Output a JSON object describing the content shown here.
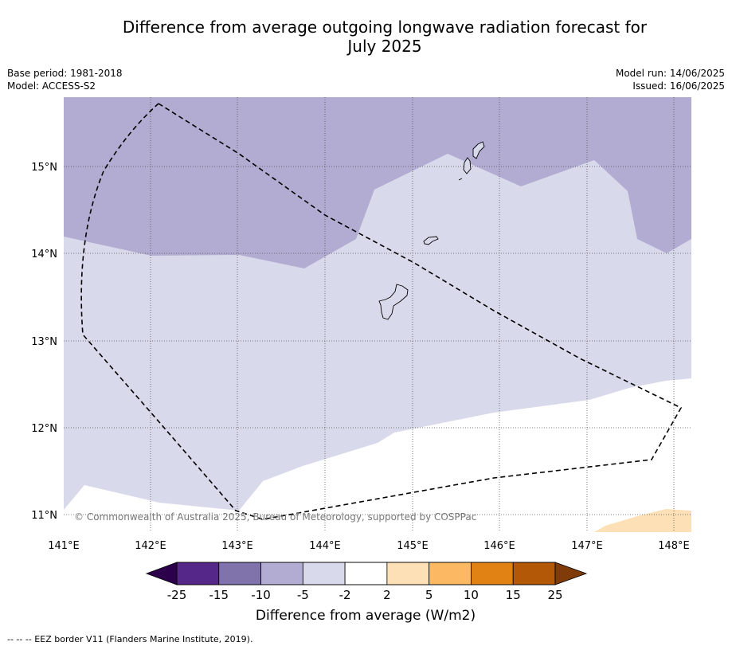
{
  "title_line1": "Difference from average outgoing longwave radiation forecast for",
  "title_line2": "July 2025",
  "meta_left": {
    "base_period": "Base period: 1981-2018",
    "model": "Model: ACCESS-S2"
  },
  "meta_right": {
    "model_run": "Model run: 14/06/2025",
    "issued": "Issued: 16/06/2025"
  },
  "map": {
    "lon_ticks": [
      "141°E",
      "142°E",
      "143°E",
      "144°E",
      "145°E",
      "146°E",
      "147°E",
      "148°E"
    ],
    "lat_ticks": [
      "15°N",
      "14°N",
      "13°N",
      "12°N",
      "11°N"
    ],
    "copyright": "© Commonwealth of Australia 2025, Bureau of Meteorology, supported by COSPPac"
  },
  "colorbar": {
    "label": "Difference from average (W/m2)",
    "ticks": [
      "-25",
      "-15",
      "-10",
      "-5",
      "-2",
      "2",
      "5",
      "10",
      "15",
      "25"
    ],
    "colors": {
      "below_min": "#2d004b",
      "bins": [
        "#542788",
        "#8073ac",
        "#b2abd2",
        "#d8daeb",
        "#ffffff",
        "#fee0b6",
        "#fdb863",
        "#e08214",
        "#b35806"
      ],
      "above_max": "#7f3b08"
    }
  },
  "footnote": "--  --  -- EEZ border V11 (Flanders Marine Institute, 2019)."
}
